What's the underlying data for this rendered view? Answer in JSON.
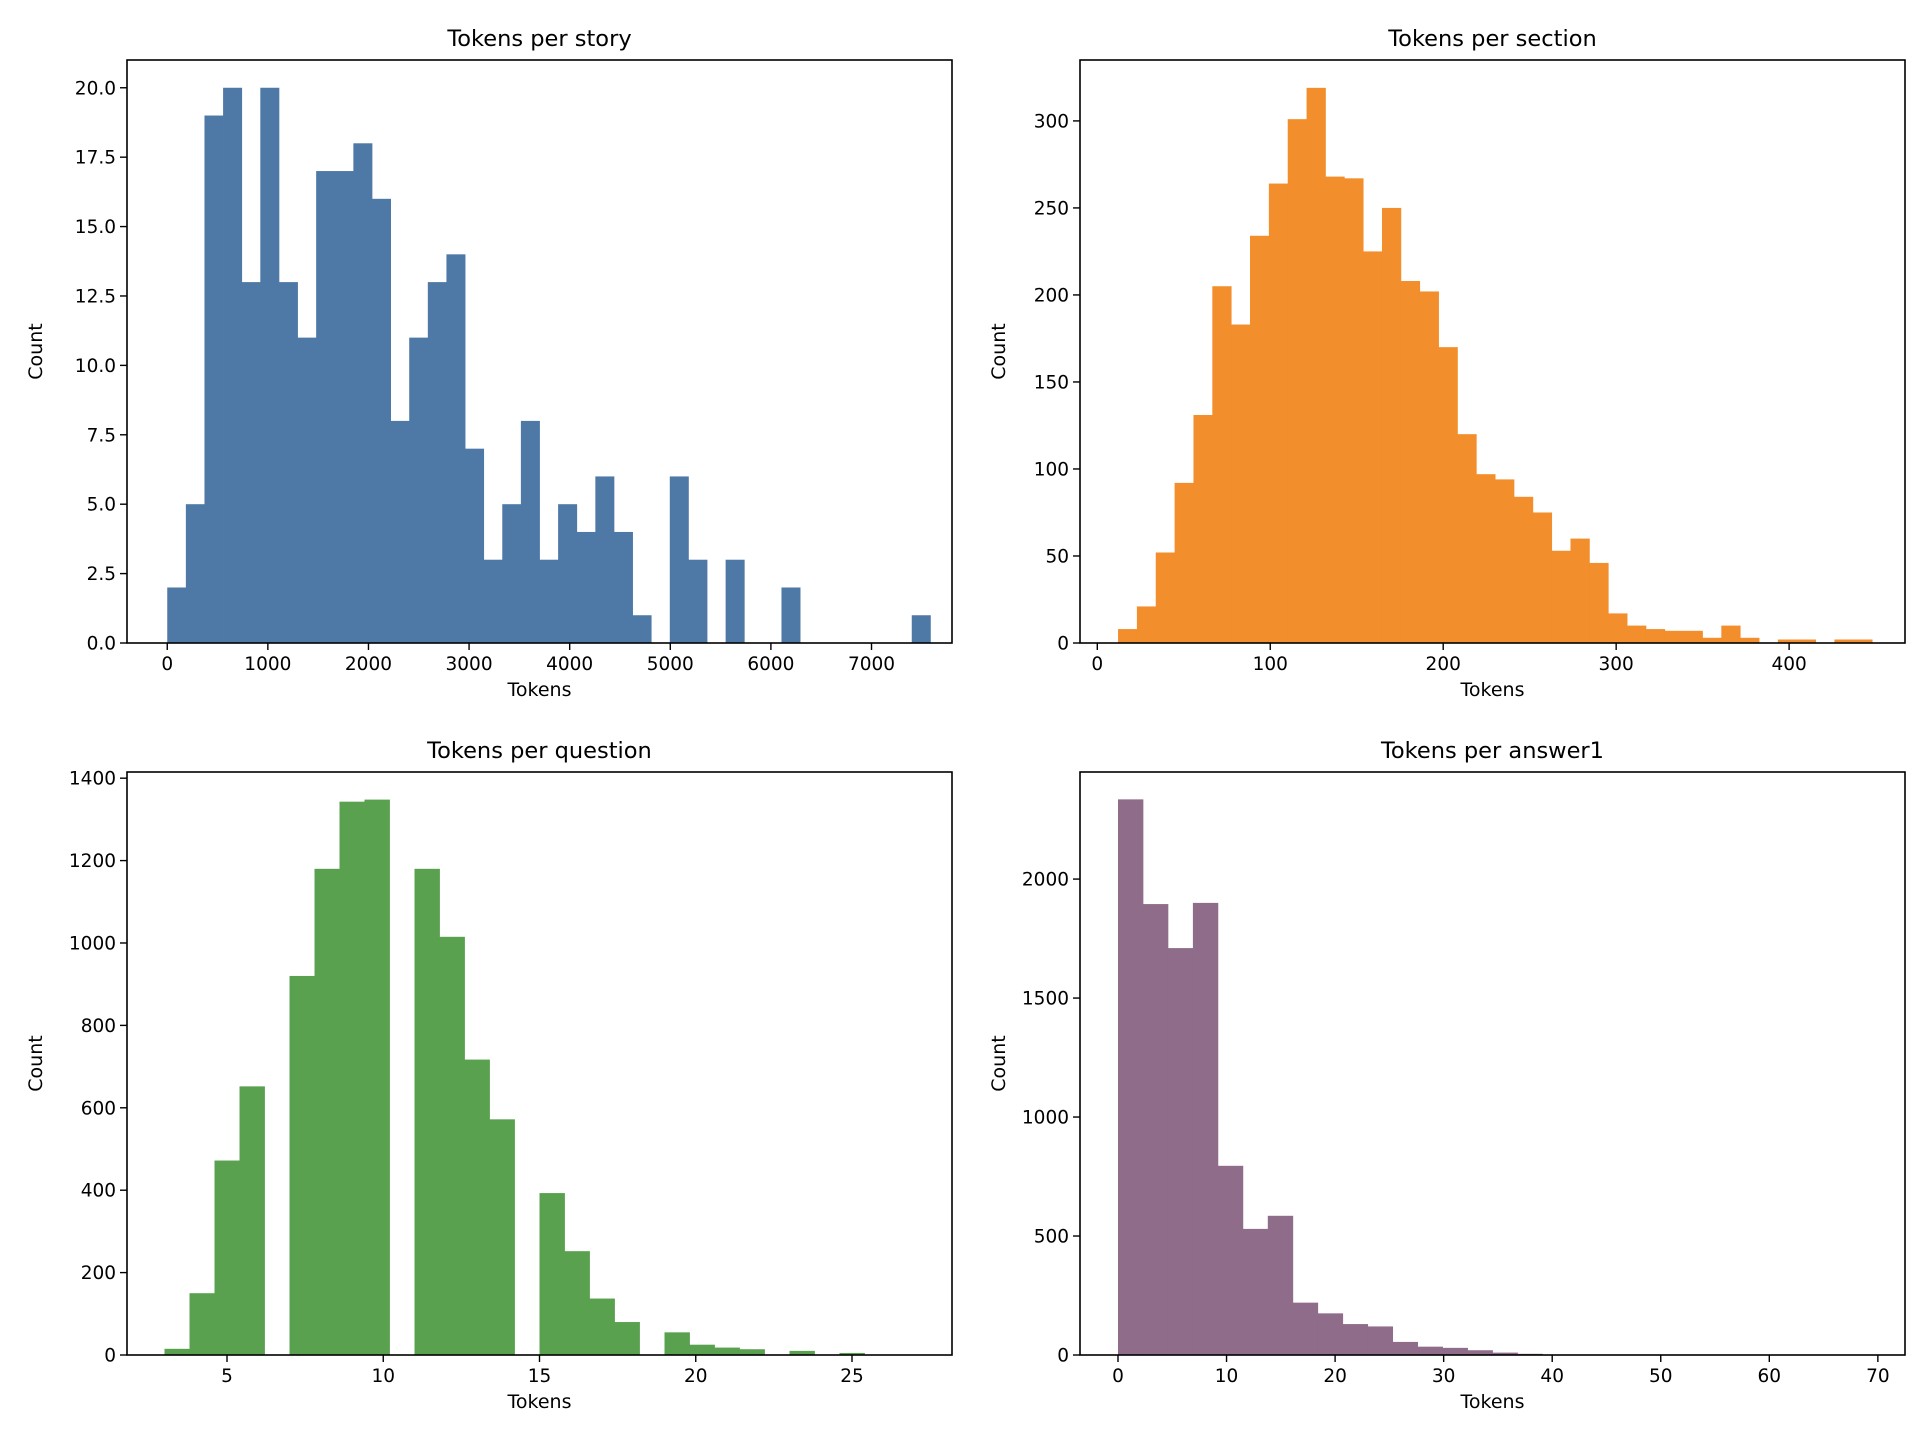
{
  "chart_data": [
    {
      "type": "bar",
      "title": "Tokens per story",
      "xlabel": "Tokens",
      "ylabel": "Count",
      "color": "#4e79a7",
      "xlim": [
        -400,
        7800
      ],
      "ylim": [
        0,
        21
      ],
      "xticks": [
        0,
        1000,
        2000,
        3000,
        4000,
        5000,
        6000,
        7000
      ],
      "yticks": [
        0,
        2.5,
        5,
        7.5,
        10,
        12.5,
        15,
        17.5,
        20
      ],
      "ytick_labels": [
        "0.0",
        "2.5",
        "5.0",
        "7.5",
        "10.0",
        "12.5",
        "15.0",
        "17.5",
        "20.0"
      ],
      "bins": {
        "start": 0,
        "width": 185,
        "counts": [
          2,
          5,
          19,
          20,
          13,
          20,
          13,
          11,
          17,
          17,
          18,
          16,
          8,
          11,
          13,
          14,
          7,
          3,
          5,
          8,
          3,
          5,
          4,
          6,
          4,
          1,
          0,
          6,
          3,
          0,
          3,
          0,
          0,
          2,
          0,
          0,
          0,
          0,
          0,
          0,
          1
        ]
      }
    },
    {
      "type": "bar",
      "title": "Tokens per section",
      "xlabel": "Tokens",
      "ylabel": "Count",
      "color": "#f28e2b",
      "xlim": [
        -10,
        467
      ],
      "ylim": [
        0,
        335
      ],
      "xticks": [
        0,
        100,
        200,
        300,
        400
      ],
      "yticks": [
        0,
        50,
        100,
        150,
        200,
        250,
        300
      ],
      "bins": {
        "start": 12,
        "width": 10.9,
        "counts": [
          8,
          21,
          52,
          92,
          131,
          205,
          183,
          234,
          264,
          301,
          319,
          268,
          267,
          225,
          250,
          208,
          202,
          170,
          120,
          97,
          94,
          84,
          75,
          53,
          60,
          46,
          17,
          10,
          8,
          7,
          7,
          3,
          10,
          3,
          0,
          2,
          2,
          0,
          2,
          2
        ]
      }
    },
    {
      "type": "bar",
      "title": "Tokens per question",
      "xlabel": "Tokens",
      "ylabel": "Count",
      "color": "#59a14f",
      "xlim": [
        1.8,
        28.2
      ],
      "ylim": [
        0,
        1415
      ],
      "xticks": [
        5,
        10,
        15,
        20,
        25
      ],
      "yticks": [
        0,
        200,
        400,
        600,
        800,
        1000,
        1200,
        1400
      ],
      "bins": {
        "start": 3,
        "width": 0.8,
        "counts": [
          15,
          150,
          472,
          652,
          0,
          920,
          1180,
          1343,
          1348,
          0,
          1180,
          1015,
          717,
          572,
          0,
          393,
          252,
          137,
          80,
          0,
          55,
          25,
          18,
          14,
          0,
          10,
          0,
          5,
          0,
          0
        ]
      }
    },
    {
      "type": "bar",
      "title": "Tokens per answer1",
      "xlabel": "Tokens",
      "ylabel": "Count",
      "color": "#8f6c89",
      "xlim": [
        -3.5,
        72.5
      ],
      "ylim": [
        0,
        2450
      ],
      "xticks": [
        0,
        10,
        20,
        30,
        40,
        50,
        60,
        70
      ],
      "yticks": [
        0,
        500,
        1000,
        1500,
        2000
      ],
      "bins": {
        "start": 0,
        "width": 2.3,
        "counts": [
          2335,
          1895,
          1710,
          1900,
          795,
          530,
          585,
          220,
          175,
          130,
          120,
          55,
          35,
          30,
          20,
          10,
          5,
          0,
          0,
          0,
          0,
          0,
          0,
          0,
          0,
          0,
          0,
          0,
          0,
          0
        ]
      }
    }
  ]
}
